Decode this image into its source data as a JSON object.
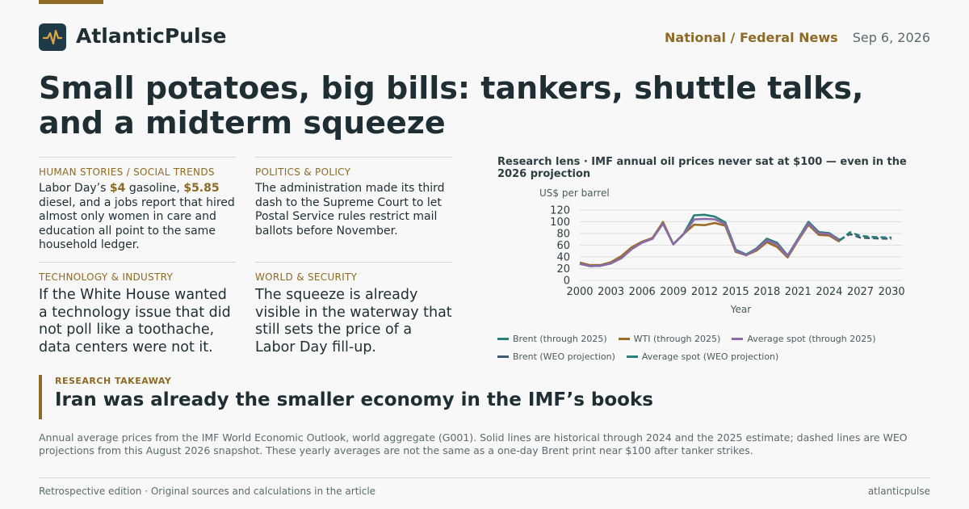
{
  "header": {
    "brand": "AtlanticPulse",
    "logo_icon": "pulse-icon",
    "section": "National / Federal News",
    "date": "Sep 6, 2026"
  },
  "headline": "Small potatoes, big bills: tankers, shuttle talks, and a midterm squeeze",
  "cards": [
    {
      "kicker": "HUMAN STORIES / SOCIAL TRENDS",
      "text_parts": [
        "Labor Day’s ",
        "$4",
        " gasoline, ",
        "$5.85",
        " diesel, and a jobs report that hired almost only women in care and education all point to the same household ledger."
      ]
    },
    {
      "kicker": "POLITICS & POLICY",
      "text": "The administration made its third dash to the Supreme Court to let Postal Service rules restrict mail ballots before November."
    },
    {
      "kicker": "TECHNOLOGY & INDUSTRY",
      "text": "If the White House wanted a technology issue that did not poll like a toothache, data centers were not it."
    },
    {
      "kicker": "WORLD & SECURITY",
      "text": "The squeeze is already visible in the waterway that still sets the price of a Labor Day fill-up."
    }
  ],
  "chart_data": {
    "type": "line",
    "title": "Research lens · IMF annual oil prices never sat at $100 — even in the 2026 projection",
    "ylabel": "US$ per barrel",
    "xlabel": "Year",
    "xlim": [
      2000,
      2031
    ],
    "ylim": [
      0,
      120
    ],
    "yticks": [
      0,
      20,
      40,
      60,
      80,
      100,
      120
    ],
    "xticks": [
      2000,
      2003,
      2006,
      2009,
      2012,
      2015,
      2018,
      2021,
      2024,
      2027,
      2030
    ],
    "grid": true,
    "legend_position": "bottom",
    "series": [
      {
        "name": "Brent (through 2025)",
        "color": "#2a7f78",
        "dashed": false,
        "x": [
          2000,
          2001,
          2002,
          2003,
          2004,
          2005,
          2006,
          2007,
          2008,
          2009,
          2010,
          2011,
          2012,
          2013,
          2014,
          2015,
          2016,
          2017,
          2018,
          2019,
          2020,
          2021,
          2022,
          2023,
          2024,
          2025
        ],
        "y": [
          28.5,
          24.4,
          25.0,
          28.8,
          38.3,
          54.4,
          65.1,
          72.4,
          97.0,
          61.7,
          79.6,
          111.0,
          112.0,
          108.8,
          98.9,
          52.4,
          44.0,
          54.4,
          71.1,
          64.0,
          42.3,
          70.9,
          99.8,
          82.5,
          80.5,
          69.0
        ]
      },
      {
        "name": "WTI (through 2025)",
        "color": "#9b6c27",
        "dashed": false,
        "x": [
          2000,
          2001,
          2002,
          2003,
          2004,
          2005,
          2006,
          2007,
          2008,
          2009,
          2010,
          2011,
          2012,
          2013,
          2014,
          2015,
          2016,
          2017,
          2018,
          2019,
          2020,
          2021,
          2022,
          2023,
          2024,
          2025
        ],
        "y": [
          30.4,
          25.9,
          26.1,
          31.1,
          41.4,
          56.5,
          66.1,
          72.3,
          99.6,
          61.7,
          79.4,
          95.1,
          94.2,
          97.9,
          93.3,
          48.7,
          43.1,
          50.8,
          65.2,
          57.0,
          39.2,
          68.1,
          94.9,
          77.6,
          76.6,
          66.0
        ]
      },
      {
        "name": "Average spot (through 2025)",
        "color": "#8a6aa8",
        "dashed": false,
        "x": [
          2000,
          2001,
          2002,
          2003,
          2004,
          2005,
          2006,
          2007,
          2008,
          2009,
          2010,
          2011,
          2012,
          2013,
          2014,
          2015,
          2016,
          2017,
          2018,
          2019,
          2020,
          2021,
          2022,
          2023,
          2024,
          2025
        ],
        "y": [
          28.2,
          24.3,
          25.0,
          28.9,
          37.8,
          53.4,
          64.3,
          71.1,
          97.0,
          61.8,
          79.0,
          104.0,
          105.0,
          104.1,
          96.2,
          50.8,
          42.8,
          52.8,
          68.3,
          61.4,
          41.3,
          69.4,
          97.1,
          80.5,
          79.2,
          68.0
        ]
      },
      {
        "name": "Brent (WEO projection)",
        "color": "#3d5a6e",
        "dashed": true,
        "x": [
          2025,
          2026,
          2027,
          2028,
          2029,
          2030
        ],
        "y": [
          69.0,
          79.0,
          73.0,
          72.0,
          71.5,
          71.0
        ]
      },
      {
        "name": "Average spot (WEO projection)",
        "color": "#2a7f78",
        "dashed": true,
        "x": [
          2025,
          2026,
          2027,
          2028,
          2029,
          2030
        ],
        "y": [
          68.0,
          82.0,
          76.0,
          74.0,
          73.5,
          73.0
        ]
      }
    ]
  },
  "takeaway": {
    "kicker": "RESEARCH TAKEAWAY",
    "text": "Iran was already the smaller economy in the IMF’s books"
  },
  "note": "Annual average prices from the IMF World Economic Outlook, world aggregate (G001). Solid lines are historical through 2024 and the 2025 estimate; dashed lines are WEO projections from this August 2026 snapshot. These yearly averages are not the same as a one-day Brent print near $100 after tanker strikes.",
  "footer": {
    "left": "Retrospective edition · Original sources and calculations in the article",
    "right": "atlanticpulse"
  }
}
